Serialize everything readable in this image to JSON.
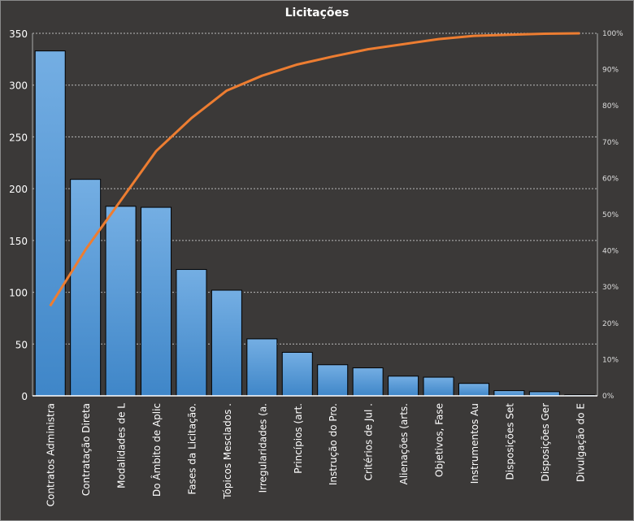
{
  "chart_data": {
    "type": "bar",
    "title": "Licitações",
    "categories": [
      "Contratos Administra",
      "Contratação Direta",
      "Modalidades de L",
      "Do Âmbito de Aplic",
      "Fases da Licitação.",
      "Tópicos Mesclados  .",
      "Irregularidades (a.",
      "Princípios (art.",
      "Instrução do Pro.",
      "Critérios de Jul .",
      "Alienações (arts.",
      "Objetivos, Fase",
      "Instrumentos  Au",
      "Disposições Set",
      "Disposições Ger",
      "Divulgação do E"
    ],
    "values": [
      333,
      209,
      183,
      182,
      122,
      102,
      55,
      42,
      30,
      27,
      19,
      18,
      12,
      5,
      4,
      1
    ],
    "cumulative_percent": [
      24.8,
      40.3,
      53.9,
      67.5,
      76.6,
      84.2,
      88.3,
      91.4,
      93.6,
      95.6,
      97.0,
      98.4,
      99.3,
      99.6,
      99.9,
      100
    ],
    "ylim": [
      0,
      350
    ],
    "yticks": [
      0,
      50,
      100,
      150,
      200,
      250,
      300,
      350
    ],
    "y2lim": [
      0,
      100
    ],
    "y2ticks": [
      "0%",
      "10%",
      "20%",
      "30%",
      "40%",
      "50%",
      "60%",
      "70%",
      "80%",
      "90%",
      "100%"
    ],
    "grid": true,
    "legend": "none",
    "colors": {
      "bar": "#4a8fd0",
      "bar_top": "#74aee3",
      "line": "#ed7d31",
      "background": "#3b3938"
    }
  }
}
